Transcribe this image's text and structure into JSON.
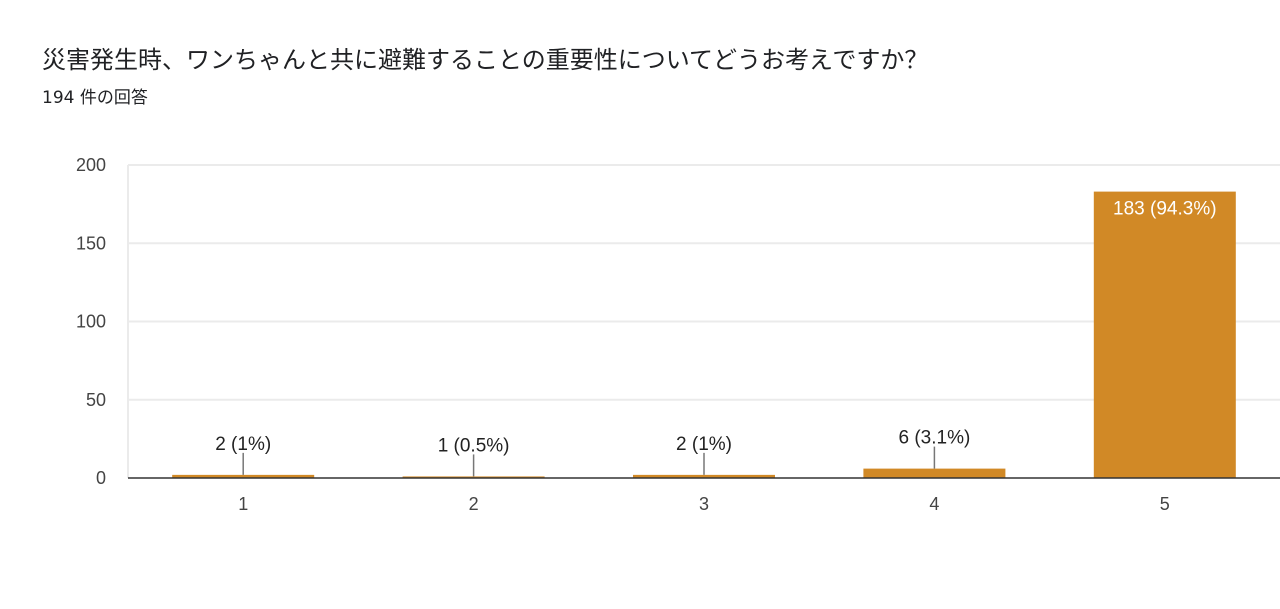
{
  "header": {
    "title": "災害発生時、ワンちゃんと共に避難することの重要性についてどうお考えですか？",
    "response_count": "194 件の回答"
  },
  "colors": {
    "bar": "#D18926",
    "grid": "#EBEBEB",
    "axis": "#333333",
    "leader": "#777777"
  },
  "chart_data": {
    "type": "bar",
    "categories": [
      "1",
      "2",
      "3",
      "4",
      "5"
    ],
    "values": [
      2,
      1,
      2,
      6,
      183
    ],
    "data_labels": [
      "2 (1%)",
      "1 (0.5%)",
      "2 (1%)",
      "6 (3.1%)",
      "183 (94.3%)"
    ],
    "ylim": [
      0,
      200
    ],
    "yticks": [
      0,
      50,
      100,
      150,
      200
    ],
    "grid": true,
    "legend": "none",
    "xlabel": "",
    "ylabel": ""
  }
}
